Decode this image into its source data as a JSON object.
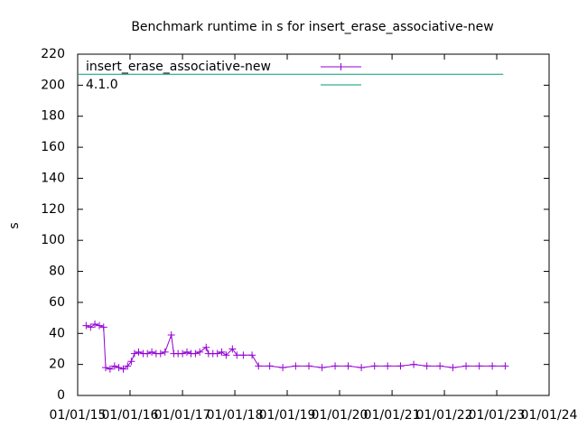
{
  "chart_data": {
    "type": "line",
    "title": "Benchmark runtime in s for insert_erase_associative-new",
    "y_label": "s",
    "xlim": [
      "2015-01-01",
      "2024-01-01"
    ],
    "xticks": [
      {
        "value": "2015-01-01",
        "label": "01/01/15"
      },
      {
        "value": "2016-01-01",
        "label": "01/01/16"
      },
      {
        "value": "2017-01-01",
        "label": "01/01/17"
      },
      {
        "value": "2018-01-01",
        "label": "01/01/18"
      },
      {
        "value": "2019-01-01",
        "label": "01/01/19"
      },
      {
        "value": "2020-01-01",
        "label": "01/01/20"
      },
      {
        "value": "2021-01-01",
        "label": "01/01/21"
      },
      {
        "value": "2022-01-01",
        "label": "01/01/22"
      },
      {
        "value": "2023-01-01",
        "label": "01/01/23"
      },
      {
        "value": "2024-01-01",
        "label": "01/01/24"
      }
    ],
    "ylim": [
      0,
      220
    ],
    "yticks": [
      0,
      20,
      40,
      60,
      80,
      100,
      120,
      140,
      160,
      180,
      200,
      220
    ],
    "legend": "top-left",
    "series": [
      {
        "name": "insert_erase_associative-new",
        "color": "#9400d3",
        "markers": true,
        "x": [
          "2015-03-01",
          "2015-04-01",
          "2015-05-01",
          "2015-06-01",
          "2015-07-01",
          "2015-07-15",
          "2015-08-15",
          "2015-09-15",
          "2015-10-15",
          "2015-11-15",
          "2015-12-15",
          "2016-01-10",
          "2016-02-01",
          "2016-03-01",
          "2016-04-01",
          "2016-05-01",
          "2016-06-01",
          "2016-07-01",
          "2016-08-01",
          "2016-09-01",
          "2016-10-15",
          "2016-11-01",
          "2016-12-01",
          "2017-01-01",
          "2017-02-01",
          "2017-03-01",
          "2017-04-01",
          "2017-05-01",
          "2017-06-15",
          "2017-07-01",
          "2017-08-01",
          "2017-09-01",
          "2017-10-01",
          "2017-11-01",
          "2017-12-15",
          "2018-01-15",
          "2018-03-01",
          "2018-05-01",
          "2018-06-15",
          "2018-09-01",
          "2018-12-01",
          "2019-03-01",
          "2019-06-01",
          "2019-09-01",
          "2019-12-01",
          "2020-03-01",
          "2020-06-01",
          "2020-09-01",
          "2020-12-01",
          "2021-03-01",
          "2021-06-01",
          "2021-09-01",
          "2021-12-01",
          "2022-03-01",
          "2022-06-01",
          "2022-09-01",
          "2022-12-01",
          "2023-03-01"
        ],
        "values": [
          45,
          44,
          46,
          45,
          44,
          18,
          17,
          19,
          18,
          17,
          19,
          22,
          27,
          28,
          27,
          27,
          28,
          27,
          27,
          28,
          39,
          27,
          27,
          27,
          28,
          27,
          27,
          28,
          31,
          27,
          27,
          27,
          28,
          26,
          30,
          26,
          26,
          26,
          19,
          19,
          18,
          19,
          19,
          18,
          19,
          19,
          18,
          19,
          19,
          19,
          20,
          19,
          19,
          18,
          19,
          19,
          19,
          19
        ]
      },
      {
        "name": "4.1.0",
        "color": "#009e73",
        "markers": false,
        "x": [
          "2015-01-01",
          "2023-02-15"
        ],
        "values": [
          207,
          207
        ]
      }
    ]
  }
}
